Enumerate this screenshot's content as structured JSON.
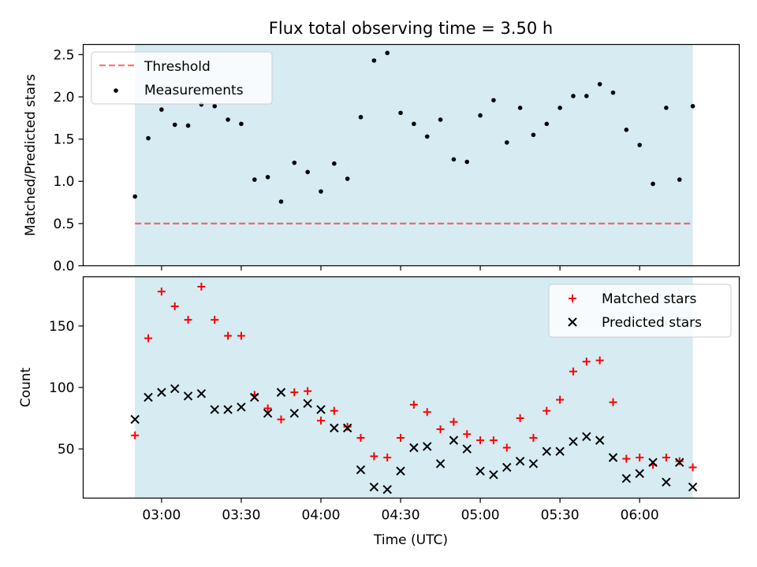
{
  "figure_title": "Flux total observing time = 3.50 h",
  "colors": {
    "observing_band": "#add8e6",
    "threshold": "#ff0000",
    "measurement": "#000000",
    "matched": "#ff0000",
    "predicted": "#000000"
  },
  "chart_data": [
    {
      "type": "scatter",
      "title": "Flux total observing time = 3.50 h",
      "xlabel": "",
      "ylabel": "Matched/Predicted stars",
      "ylim": [
        0,
        2.62
      ],
      "yticks": [
        "0.0",
        "0.5",
        "1.0",
        "1.5",
        "2.0",
        "2.5"
      ],
      "ytick_values": [
        0,
        0.5,
        1.0,
        1.5,
        2.0,
        2.5
      ],
      "xlim_minutes_of_day": [
        150.5,
        397.5
      ],
      "observing_span": [
        "02:50",
        "06:20"
      ],
      "grid": false,
      "legend_position": "upper-left",
      "threshold": {
        "name": "Threshold",
        "value": 0.5,
        "style": "dashed"
      },
      "series": [
        {
          "name": "Measurements",
          "marker": "dot",
          "x": [
            "02:50",
            "02:55",
            "03:00",
            "03:05",
            "03:10",
            "03:15",
            "03:20",
            "03:25",
            "03:30",
            "03:35",
            "03:40",
            "03:45",
            "03:50",
            "03:55",
            "04:00",
            "04:05",
            "04:10",
            "04:15",
            "04:20",
            "04:25",
            "04:30",
            "04:35",
            "04:40",
            "04:45",
            "04:50",
            "04:55",
            "05:00",
            "05:05",
            "05:10",
            "05:15",
            "05:20",
            "05:25",
            "05:30",
            "05:35",
            "05:40",
            "05:45",
            "05:50",
            "05:55",
            "06:00",
            "06:05",
            "06:10",
            "06:15",
            "06:20"
          ],
          "y": [
            0.82,
            1.51,
            1.85,
            1.67,
            1.66,
            1.91,
            1.89,
            1.73,
            1.68,
            1.02,
            1.05,
            0.76,
            1.22,
            1.11,
            0.88,
            1.21,
            1.03,
            1.76,
            2.43,
            2.52,
            1.81,
            1.68,
            1.53,
            1.73,
            1.26,
            1.23,
            1.78,
            1.96,
            1.46,
            1.87,
            1.55,
            1.68,
            1.87,
            2.01,
            2.01,
            2.15,
            2.05,
            1.61,
            1.43,
            0.97,
            1.87,
            1.02,
            1.89
          ]
        }
      ]
    },
    {
      "type": "scatter",
      "title": "",
      "xlabel": "Time (UTC)",
      "ylabel": "Count",
      "ylim": [
        10,
        190
      ],
      "yticks": [
        "50",
        "100",
        "150"
      ],
      "ytick_values": [
        50,
        100,
        150
      ],
      "xlim_minutes_of_day": [
        150.5,
        397.5
      ],
      "xticks": [
        "03:00",
        "03:30",
        "04:00",
        "04:30",
        "05:00",
        "05:30",
        "06:00"
      ],
      "xtick_minutes": [
        180,
        210,
        240,
        270,
        300,
        330,
        360
      ],
      "observing_span": [
        "02:50",
        "06:20"
      ],
      "grid": false,
      "legend_position": "upper-right",
      "series": [
        {
          "name": "Matched stars",
          "marker": "plus",
          "x": [
            "02:50",
            "02:55",
            "03:00",
            "03:05",
            "03:10",
            "03:15",
            "03:20",
            "03:25",
            "03:30",
            "03:35",
            "03:40",
            "03:45",
            "03:50",
            "03:55",
            "04:00",
            "04:05",
            "04:10",
            "04:15",
            "04:20",
            "04:25",
            "04:30",
            "04:35",
            "04:40",
            "04:45",
            "04:50",
            "04:55",
            "05:00",
            "05:05",
            "05:10",
            "05:15",
            "05:20",
            "05:25",
            "05:30",
            "05:35",
            "05:40",
            "05:45",
            "05:50",
            "05:55",
            "06:00",
            "06:05",
            "06:10",
            "06:15",
            "06:20"
          ],
          "y": [
            61,
            140,
            178,
            166,
            155,
            182,
            155,
            142,
            142,
            94,
            83,
            74,
            96,
            97,
            73,
            81,
            68,
            59,
            44,
            43,
            59,
            86,
            80,
            66,
            72,
            62,
            57,
            57,
            51,
            75,
            59,
            81,
            90,
            113,
            121,
            122,
            88,
            42,
            43,
            37,
            43,
            40,
            35
          ]
        },
        {
          "name": "Predicted stars",
          "marker": "x",
          "x": [
            "02:50",
            "02:55",
            "03:00",
            "03:05",
            "03:10",
            "03:15",
            "03:20",
            "03:25",
            "03:30",
            "03:35",
            "03:40",
            "03:45",
            "03:50",
            "03:55",
            "04:00",
            "04:05",
            "04:10",
            "04:15",
            "04:20",
            "04:25",
            "04:30",
            "04:35",
            "04:40",
            "04:45",
            "04:50",
            "04:55",
            "05:00",
            "05:05",
            "05:10",
            "05:15",
            "05:20",
            "05:25",
            "05:30",
            "05:35",
            "05:40",
            "05:45",
            "05:50",
            "05:55",
            "06:00",
            "06:05",
            "06:10",
            "06:15",
            "06:20"
          ],
          "y": [
            74,
            92,
            96,
            99,
            93,
            95,
            82,
            82,
            84,
            92,
            79,
            96,
            79,
            87,
            82,
            67,
            67,
            33,
            19,
            17,
            32,
            51,
            52,
            38,
            57,
            50,
            32,
            29,
            35,
            40,
            38,
            48,
            48,
            56,
            60,
            57,
            43,
            26,
            30,
            39,
            23,
            39,
            19
          ]
        }
      ]
    }
  ]
}
